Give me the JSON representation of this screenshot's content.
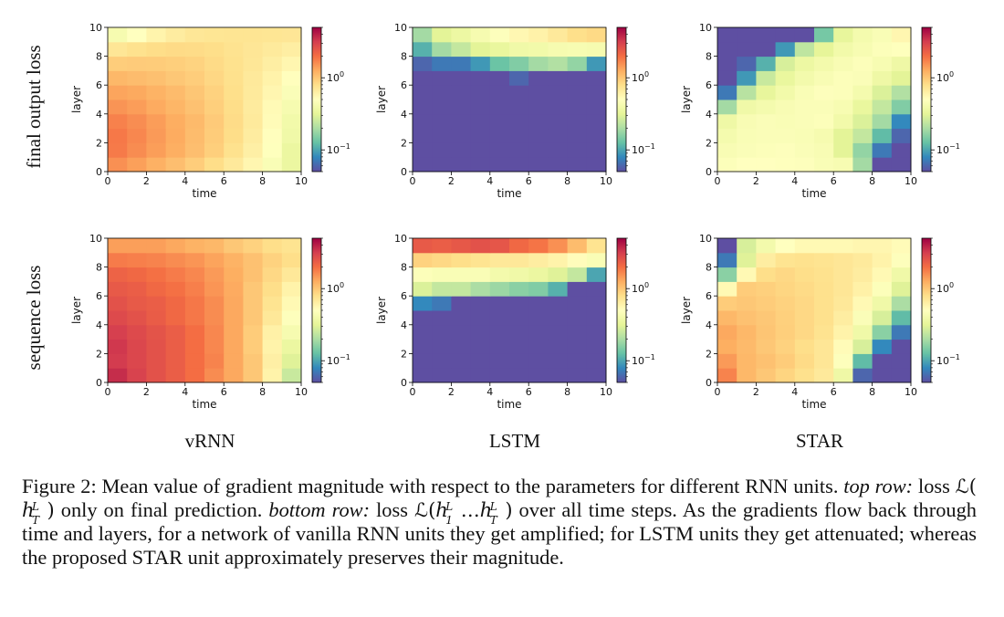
{
  "chart_data": {
    "type": "heatmap",
    "row_titles": [
      "final output loss",
      "sequence loss"
    ],
    "column_titles": [
      "vRNN",
      "LSTM",
      "STAR"
    ],
    "xlabel": "time",
    "ylabel": "layer",
    "xticks": [
      "0",
      "2",
      "4",
      "6",
      "8",
      "10"
    ],
    "yticks": [
      "0",
      "2",
      "4",
      "6",
      "8",
      "10"
    ],
    "colorbar": {
      "scale": "log",
      "range": [
        0.05,
        5.0
      ],
      "ticks": [
        {
          "value": 1.0,
          "base": "10",
          "exp": "0"
        },
        {
          "value": 0.1,
          "base": "10",
          "exp": "−1"
        }
      ],
      "colormap": "Spectral_r"
    },
    "panels": [
      {
        "row": "final output loss",
        "column": "vRNN",
        "values": [
          [
            1.55,
            1.39,
            1.22,
            1.08,
            0.94,
            0.81,
            0.69,
            0.57,
            0.45,
            0.35
          ],
          [
            1.81,
            1.6,
            1.41,
            1.24,
            1.08,
            0.93,
            0.77,
            0.63,
            0.49,
            0.35
          ],
          [
            1.84,
            1.65,
            1.45,
            1.27,
            1.1,
            0.95,
            0.81,
            0.66,
            0.51,
            0.38
          ],
          [
            1.73,
            1.59,
            1.42,
            1.26,
            1.12,
            0.97,
            0.82,
            0.68,
            0.53,
            0.39
          ],
          [
            1.51,
            1.42,
            1.28,
            1.17,
            1.05,
            0.93,
            0.81,
            0.67,
            0.54,
            0.42
          ],
          [
            1.34,
            1.29,
            1.2,
            1.11,
            1.01,
            0.9,
            0.79,
            0.68,
            0.57,
            0.46
          ],
          [
            1.15,
            1.1,
            1.06,
            1.0,
            0.94,
            0.86,
            0.78,
            0.69,
            0.6,
            0.51
          ],
          [
            0.94,
            0.96,
            0.95,
            0.93,
            0.89,
            0.83,
            0.77,
            0.71,
            0.64,
            0.57
          ],
          [
            0.72,
            0.77,
            0.81,
            0.83,
            0.82,
            0.8,
            0.76,
            0.72,
            0.68,
            0.64
          ],
          [
            0.42,
            0.5,
            0.59,
            0.66,
            0.71,
            0.73,
            0.74,
            0.74,
            0.73,
            0.72
          ]
        ]
      },
      {
        "row": "final output loss",
        "column": "LSTM",
        "values": [
          [
            0.05,
            0.05,
            0.05,
            0.05,
            0.05,
            0.05,
            0.05,
            0.05,
            0.05,
            0.05
          ],
          [
            0.05,
            0.05,
            0.05,
            0.05,
            0.05,
            0.05,
            0.05,
            0.05,
            0.05,
            0.05
          ],
          [
            0.05,
            0.05,
            0.05,
            0.05,
            0.05,
            0.05,
            0.05,
            0.05,
            0.05,
            0.05
          ],
          [
            0.05,
            0.05,
            0.05,
            0.05,
            0.05,
            0.05,
            0.05,
            0.05,
            0.05,
            0.05
          ],
          [
            0.05,
            0.05,
            0.05,
            0.05,
            0.05,
            0.05,
            0.05,
            0.05,
            0.05,
            0.05
          ],
          [
            0.05,
            0.05,
            0.05,
            0.05,
            0.05,
            0.05,
            0.05,
            0.05,
            0.05,
            0.05
          ],
          [
            0.05,
            0.05,
            0.05,
            0.05,
            0.05,
            0.06,
            0.05,
            0.05,
            0.05,
            0.05
          ],
          [
            0.06,
            0.07,
            0.07,
            0.09,
            0.13,
            0.15,
            0.19,
            0.21,
            0.17,
            0.09
          ],
          [
            0.11,
            0.19,
            0.24,
            0.31,
            0.34,
            0.38,
            0.39,
            0.42,
            0.43,
            0.42
          ],
          [
            0.19,
            0.31,
            0.36,
            0.42,
            0.48,
            0.56,
            0.61,
            0.69,
            0.79,
            0.84
          ]
        ]
      },
      {
        "row": "final output loss",
        "column": "STAR",
        "values": [
          [
            0.47,
            0.5,
            0.5,
            0.49,
            0.48,
            0.45,
            0.43,
            0.19,
            0.05,
            0.05
          ],
          [
            0.44,
            0.46,
            0.47,
            0.48,
            0.46,
            0.44,
            0.31,
            0.17,
            0.07,
            0.05
          ],
          [
            0.41,
            0.45,
            0.46,
            0.46,
            0.45,
            0.42,
            0.31,
            0.24,
            0.12,
            0.06
          ],
          [
            0.37,
            0.44,
            0.46,
            0.45,
            0.46,
            0.47,
            0.39,
            0.29,
            0.19,
            0.08
          ],
          [
            0.19,
            0.38,
            0.41,
            0.44,
            0.46,
            0.46,
            0.43,
            0.34,
            0.24,
            0.15
          ],
          [
            0.07,
            0.22,
            0.33,
            0.39,
            0.45,
            0.48,
            0.47,
            0.41,
            0.29,
            0.21
          ],
          [
            0.05,
            0.09,
            0.25,
            0.34,
            0.4,
            0.44,
            0.47,
            0.46,
            0.37,
            0.31
          ],
          [
            0.05,
            0.06,
            0.11,
            0.28,
            0.36,
            0.4,
            0.44,
            0.47,
            0.43,
            0.37
          ],
          [
            0.05,
            0.05,
            0.05,
            0.09,
            0.23,
            0.32,
            0.39,
            0.43,
            0.47,
            0.49
          ],
          [
            0.05,
            0.05,
            0.05,
            0.05,
            0.05,
            0.14,
            0.33,
            0.41,
            0.45,
            0.57
          ]
        ]
      },
      {
        "row": "sequence loss",
        "column": "vRNN",
        "values": [
          [
            3.6,
            3.0,
            2.6,
            2.3,
            2.0,
            1.6,
            1.3,
            1.0,
            0.6,
            0.25
          ],
          [
            3.2,
            2.9,
            2.6,
            2.3,
            2.0,
            1.7,
            1.3,
            1.0,
            0.63,
            0.3
          ],
          [
            3.3,
            2.9,
            2.6,
            2.3,
            2.0,
            1.65,
            1.3,
            0.95,
            0.6,
            0.35
          ],
          [
            3.1,
            2.8,
            2.55,
            2.3,
            2.0,
            1.65,
            1.3,
            0.95,
            0.62,
            0.42
          ],
          [
            2.8,
            2.6,
            2.35,
            2.1,
            1.85,
            1.6,
            1.3,
            1.0,
            0.7,
            0.48
          ],
          [
            2.6,
            2.4,
            2.3,
            2.1,
            1.85,
            1.6,
            1.3,
            1.0,
            0.75,
            0.55
          ],
          [
            2.4,
            2.3,
            2.1,
            1.95,
            1.75,
            1.5,
            1.28,
            1.0,
            0.8,
            0.6
          ],
          [
            2.2,
            2.1,
            1.95,
            1.8,
            1.65,
            1.45,
            1.25,
            1.05,
            0.85,
            0.7
          ],
          [
            1.8,
            1.75,
            1.7,
            1.6,
            1.5,
            1.35,
            1.2,
            1.05,
            0.9,
            0.8
          ],
          [
            1.4,
            1.4,
            1.4,
            1.3,
            1.2,
            1.15,
            1.0,
            0.9,
            0.8,
            0.75
          ]
        ]
      },
      {
        "row": "sequence loss",
        "column": "LSTM",
        "values": [
          [
            0.05,
            0.05,
            0.05,
            0.05,
            0.05,
            0.05,
            0.05,
            0.05,
            0.05,
            0.05
          ],
          [
            0.05,
            0.05,
            0.05,
            0.05,
            0.05,
            0.05,
            0.05,
            0.05,
            0.05,
            0.05
          ],
          [
            0.05,
            0.05,
            0.05,
            0.05,
            0.05,
            0.05,
            0.05,
            0.05,
            0.05,
            0.05
          ],
          [
            0.05,
            0.05,
            0.05,
            0.05,
            0.05,
            0.05,
            0.05,
            0.05,
            0.05,
            0.05
          ],
          [
            0.05,
            0.05,
            0.05,
            0.05,
            0.05,
            0.05,
            0.05,
            0.05,
            0.05,
            0.05
          ],
          [
            0.08,
            0.07,
            0.05,
            0.05,
            0.05,
            0.05,
            0.05,
            0.05,
            0.05,
            0.05
          ],
          [
            0.29,
            0.24,
            0.24,
            0.2,
            0.18,
            0.16,
            0.15,
            0.11,
            0.05,
            0.05
          ],
          [
            0.47,
            0.45,
            0.45,
            0.45,
            0.4,
            0.38,
            0.35,
            0.3,
            0.24,
            0.1
          ],
          [
            0.9,
            0.85,
            0.8,
            0.75,
            0.7,
            0.7,
            0.65,
            0.6,
            0.52,
            0.45
          ],
          [
            2.4,
            2.3,
            2.45,
            2.6,
            2.5,
            2.1,
            1.9,
            1.55,
            1.1,
            0.75
          ]
        ]
      },
      {
        "row": "sequence loss",
        "column": "STAR",
        "values": [
          [
            1.7,
            1.15,
            1.0,
            0.88,
            0.78,
            0.69,
            0.37,
            0.06,
            0.05,
            0.05
          ],
          [
            1.45,
            1.15,
            1.05,
            0.95,
            0.83,
            0.72,
            0.48,
            0.12,
            0.05,
            0.05
          ],
          [
            1.25,
            1.12,
            1.0,
            0.9,
            0.8,
            0.72,
            0.53,
            0.28,
            0.08,
            0.05
          ],
          [
            1.3,
            1.15,
            1.02,
            0.93,
            0.85,
            0.76,
            0.6,
            0.38,
            0.16,
            0.07
          ],
          [
            1.15,
            1.05,
            1.0,
            0.92,
            0.85,
            0.78,
            0.65,
            0.46,
            0.28,
            0.12
          ],
          [
            0.95,
            1.0,
            0.95,
            0.9,
            0.85,
            0.78,
            0.7,
            0.55,
            0.38,
            0.2
          ],
          [
            0.55,
            0.95,
            0.92,
            0.87,
            0.83,
            0.78,
            0.72,
            0.62,
            0.47,
            0.3
          ],
          [
            0.16,
            0.55,
            0.8,
            0.85,
            0.8,
            0.77,
            0.72,
            0.66,
            0.55,
            0.38
          ],
          [
            0.07,
            0.3,
            0.65,
            0.75,
            0.77,
            0.75,
            0.72,
            0.68,
            0.6,
            0.48
          ],
          [
            0.05,
            0.28,
            0.4,
            0.5,
            0.55,
            0.55,
            0.55,
            0.57,
            0.57,
            0.53
          ]
        ]
      }
    ]
  },
  "caption": {
    "label": "Figure 2:",
    "text1": "Mean value of gradient magnitude with respect to the parameters for different RNN units.",
    "top_row_label": "top row:",
    "text2a": "loss",
    "loss_symbol": "ℒ",
    "h": "h",
    "L": "L",
    "T": "T",
    "one": "1",
    "dots": "…",
    "lparen": "(",
    "rparen": ")",
    "text2b": "only on final prediction.",
    "bottom_row_label": "bottom row:",
    "text3a": "loss",
    "text3b": "over all time steps.",
    "text4": "As the gradients flow back through time and layers, for a network of vanilla RNN units they get amplified; for LSTM units they get attenuated; whereas the proposed STAR unit approximately preserves their magnitude."
  }
}
